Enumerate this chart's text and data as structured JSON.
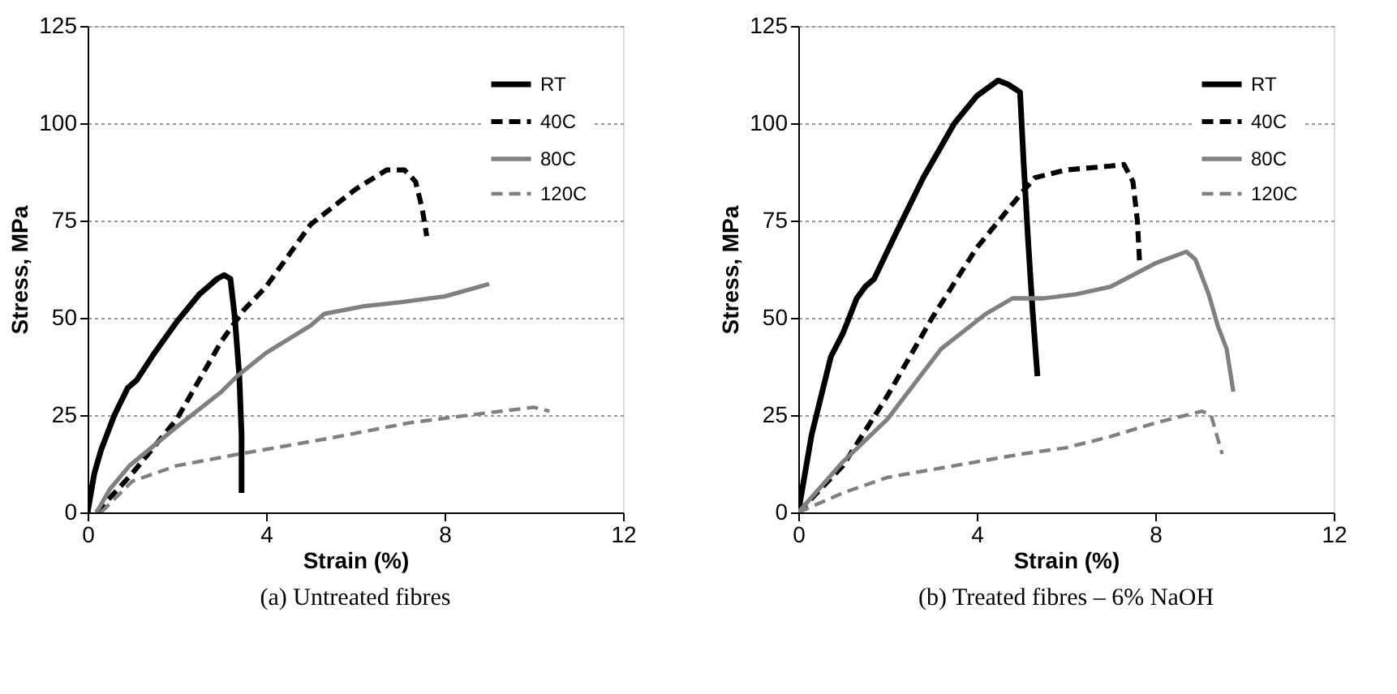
{
  "chart_data": [
    {
      "type": "line",
      "title": "(a) Untreated fibres",
      "xlabel": "Strain (%)",
      "ylabel": "Stress, MPa",
      "xlim": [
        0,
        12
      ],
      "xticks": [
        0,
        4,
        8,
        12
      ],
      "ylim": [
        0,
        125
      ],
      "yticks": [
        0,
        25,
        50,
        75,
        100,
        125
      ],
      "grid": "y",
      "legend": "top right",
      "series": [
        {
          "name": "RT",
          "color": "#000000",
          "line_style": "solid",
          "x": [
            0,
            0.15,
            0.3,
            0.6,
            0.9,
            1.1,
            1.5,
            2.0,
            2.5,
            2.9,
            3.06,
            3.2,
            3.3,
            3.4,
            3.45,
            3.45
          ],
          "values": [
            0,
            10,
            16,
            25,
            32,
            34,
            41,
            49,
            56,
            60,
            61,
            60,
            50,
            35,
            20,
            5
          ]
        },
        {
          "name": "40C",
          "color": "#000000",
          "line_style": "dashed",
          "x": [
            0.2,
            1,
            2,
            3,
            3.5,
            4,
            5,
            6,
            6.7,
            7.1,
            7.35,
            7.5,
            7.6
          ],
          "values": [
            0,
            10,
            24,
            44,
            52,
            58,
            74,
            83,
            88,
            88,
            85,
            78,
            71
          ]
        },
        {
          "name": "80C",
          "color": "#808080",
          "line_style": "solid",
          "x": [
            0.2,
            0.5,
            0.94,
            2,
            3,
            3.35,
            4,
            5,
            5.3,
            6.2,
            7,
            8,
            9
          ],
          "values": [
            0,
            6,
            12,
            22,
            31,
            35,
            41,
            48,
            51,
            53,
            54,
            55.5,
            58.7
          ]
        },
        {
          "name": "120C",
          "color": "#808080",
          "line_style": "dashed",
          "x": [
            0.3,
            1,
            2,
            3.4,
            5.4,
            7.2,
            8.9,
            10,
            10.35
          ],
          "values": [
            0,
            8,
            12,
            15,
            19,
            23,
            25.5,
            27,
            26
          ]
        }
      ]
    },
    {
      "type": "line",
      "title": "(b) Treated fibres – 6% NaOH",
      "xlabel": "Strain (%)",
      "ylabel": "Stress, MPa",
      "xlim": [
        0,
        12
      ],
      "xticks": [
        0,
        4,
        8,
        12
      ],
      "ylim": [
        0,
        125
      ],
      "yticks": [
        0,
        25,
        50,
        75,
        100,
        125
      ],
      "grid": "y",
      "legend": "top right",
      "series": [
        {
          "name": "RT",
          "color": "#000000",
          "line_style": "solid",
          "x": [
            0,
            0.3,
            0.73,
            1.0,
            1.31,
            1.5,
            1.7,
            2.2,
            2.8,
            3.5,
            4.0,
            4.48,
            4.7,
            4.97,
            5.05,
            5.15,
            5.25,
            5.36
          ],
          "values": [
            0,
            20,
            40,
            46,
            55,
            58,
            60,
            72,
            86,
            100,
            107,
            111,
            110,
            108,
            90,
            70,
            52,
            35
          ]
        },
        {
          "name": "40C",
          "color": "#000000",
          "line_style": "dashed",
          "x": [
            0,
            1,
            2,
            3,
            4,
            5,
            5.3,
            6,
            7,
            7.3,
            7.5,
            7.6,
            7.65
          ],
          "values": [
            0,
            12,
            30,
            50,
            68,
            82,
            86,
            88,
            89,
            89.4,
            85,
            75,
            64
          ]
        },
        {
          "name": "80C",
          "color": "#808080",
          "line_style": "solid",
          "x": [
            0,
            1,
            2,
            3.2,
            4.2,
            4.8,
            5.5,
            6.2,
            7,
            8,
            8.7,
            8.9,
            9.2,
            9.4,
            9.6,
            9.75
          ],
          "values": [
            0,
            13,
            24,
            42,
            51,
            55,
            55,
            56,
            58,
            64,
            67,
            65,
            56,
            48,
            42,
            31
          ]
        },
        {
          "name": "120C",
          "color": "#808080",
          "line_style": "dashed",
          "x": [
            0,
            1,
            2,
            3,
            4,
            5,
            6,
            7,
            8,
            9.05,
            9.25,
            9.5
          ],
          "values": [
            0,
            5,
            9,
            11,
            13,
            15,
            16.6,
            19.5,
            23,
            26,
            25,
            15
          ]
        }
      ]
    }
  ]
}
